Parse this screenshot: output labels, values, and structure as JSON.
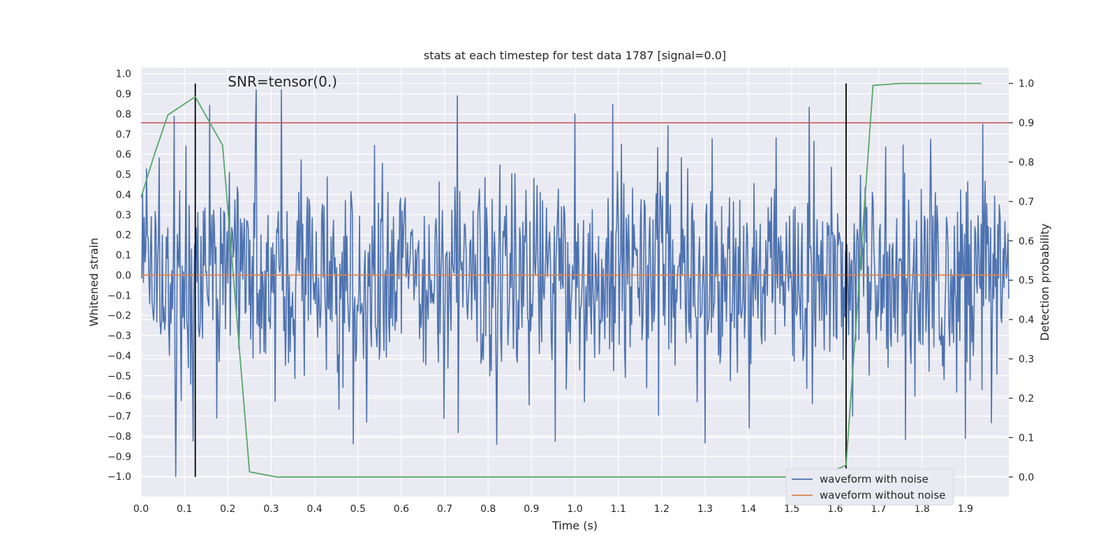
{
  "chart_data": {
    "type": "line",
    "title": "stats at each timestep for test data 1787 [signal=0.0]",
    "xlabel": "Time (s)",
    "ylabel": "Whitened strain",
    "y2label": "Detection probability",
    "annotation": "SNR=tensor(0.)",
    "xlim": [
      0.0,
      2.0
    ],
    "ylim": [
      -1.1,
      1.03
    ],
    "y2lim": [
      -0.05,
      1.04
    ],
    "x_ticks": [
      0.0,
      0.1,
      0.2,
      0.3,
      0.4,
      0.5,
      0.6,
      0.7,
      0.8,
      0.9,
      1.0,
      1.1,
      1.2,
      1.3,
      1.4,
      1.5,
      1.6,
      1.7,
      1.8,
      1.9
    ],
    "x_tick_labels": [
      "0.0",
      "0.1",
      "0.2",
      "0.3",
      "0.4",
      "0.5",
      "0.6",
      "0.7",
      "0.8",
      "0.9",
      "1.0",
      "1.1",
      "1.2",
      "1.3",
      "1.4",
      "1.5",
      "1.6",
      "1.7",
      "1.8",
      "1.9"
    ],
    "y_ticks": [
      1.0,
      0.9,
      0.8,
      0.7,
      0.6,
      0.5,
      0.4,
      0.3,
      0.2,
      0.1,
      0.0,
      -0.1,
      -0.2,
      -0.3,
      -0.4,
      -0.5,
      -0.6,
      -0.7,
      -0.8,
      -0.9,
      -1.0
    ],
    "y_tick_labels": [
      "1.0",
      "0.9",
      "0.8",
      "0.7",
      "0.6",
      "0.5",
      "0.4",
      "0.3",
      "0.2",
      "0.1",
      "0.0",
      "−0.1",
      "−0.2",
      "−0.3",
      "−0.4",
      "−0.5",
      "−0.6",
      "−0.7",
      "−0.8",
      "−0.9",
      "−1.0"
    ],
    "y2_ticks": [
      1.0,
      0.9,
      0.8,
      0.7,
      0.6,
      0.5,
      0.4,
      0.3,
      0.2,
      0.1,
      0.0
    ],
    "y2_tick_labels": [
      "1.0",
      "0.9",
      "0.8",
      "0.7",
      "0.6",
      "0.5",
      "0.4",
      "0.3",
      "0.2",
      "0.1",
      "0.0"
    ],
    "grid": true,
    "legend_position": "bottom-right",
    "series": [
      {
        "name": "waveform with noise",
        "color": "#4c72b0",
        "axis": "left",
        "kind": "noise",
        "x_range": [
          0.0,
          2.0
        ],
        "y_range": [
          -1.0,
          0.93
        ]
      },
      {
        "name": "waveform without noise",
        "color": "#dd8452",
        "axis": "left",
        "x": [
          0.0,
          2.0
        ],
        "y": [
          0.0,
          0.0
        ]
      },
      {
        "color": "#55a868",
        "axis": "right",
        "x": [
          0.0,
          0.031,
          0.062,
          0.125,
          0.188,
          0.25,
          0.312,
          0.375,
          0.437,
          0.5,
          0.562,
          0.625,
          0.687,
          0.75,
          0.812,
          0.875,
          0.937,
          1.0,
          1.062,
          1.125,
          1.187,
          1.25,
          1.312,
          1.375,
          1.437,
          1.5,
          1.562,
          1.625,
          1.687,
          1.75,
          1.812,
          1.875,
          1.937
        ],
        "y": [
          0.71,
          0.82,
          0.92,
          0.966,
          0.843,
          0.013,
          0.0,
          0.0,
          0.0,
          0.0,
          0.0,
          0.0,
          0.0,
          0.0,
          0.0,
          0.0,
          0.0,
          0.0,
          0.0,
          0.0,
          0.0,
          0.0,
          0.0,
          0.0,
          0.0,
          0.0,
          0.0,
          0.03,
          0.995,
          1.0,
          1.0,
          1.0,
          1.0
        ]
      }
    ],
    "reference_lines": [
      {
        "orientation": "horizontal",
        "axis": "right",
        "value": 0.9,
        "color": "#c44e52"
      },
      {
        "orientation": "vertical",
        "value": 0.125,
        "color": "#000000",
        "y2_span": [
          0.0,
          1.0
        ]
      },
      {
        "orientation": "vertical",
        "value": 1.625,
        "color": "#000000",
        "y2_span": [
          0.0,
          1.0
        ]
      }
    ]
  }
}
